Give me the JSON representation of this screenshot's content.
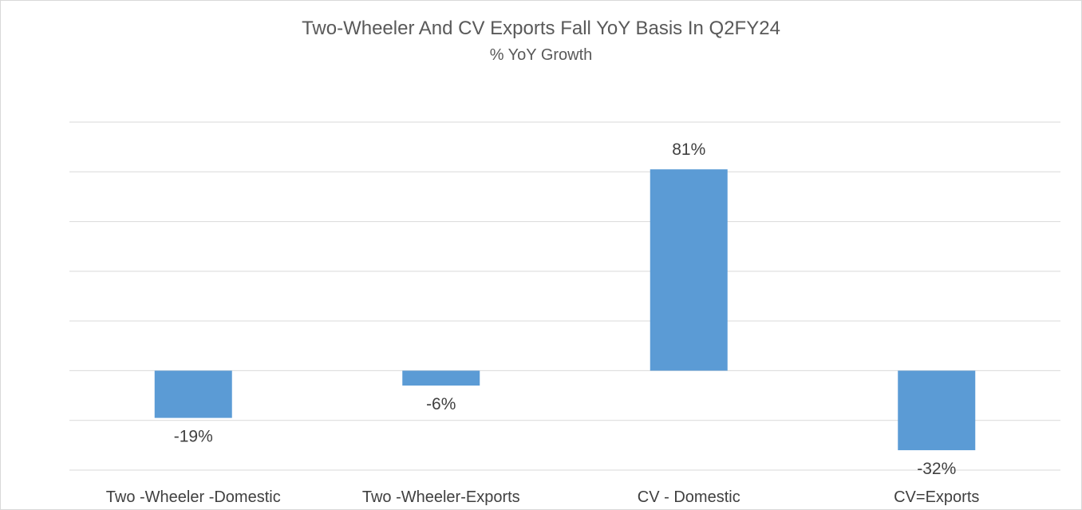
{
  "chart_data": {
    "type": "bar",
    "title": "Two-Wheeler And CV Exports Fall YoY Basis In Q2FY24",
    "subtitle": "% YoY Growth",
    "categories": [
      "Two -Wheeler -Domestic",
      "Two -Wheeler-Exports",
      "CV - Domestic",
      "CV=Exports"
    ],
    "values": [
      -19,
      -6,
      81,
      -32
    ],
    "data_labels": [
      "-19%",
      "-6%",
      "81%",
      "-32%"
    ],
    "ylim": [
      -40,
      100
    ],
    "grid": true,
    "legend": "none",
    "colors": {
      "bar": "#5b9bd5",
      "grid": "#d9d9d9",
      "text": "#404040",
      "title": "#595959"
    }
  }
}
